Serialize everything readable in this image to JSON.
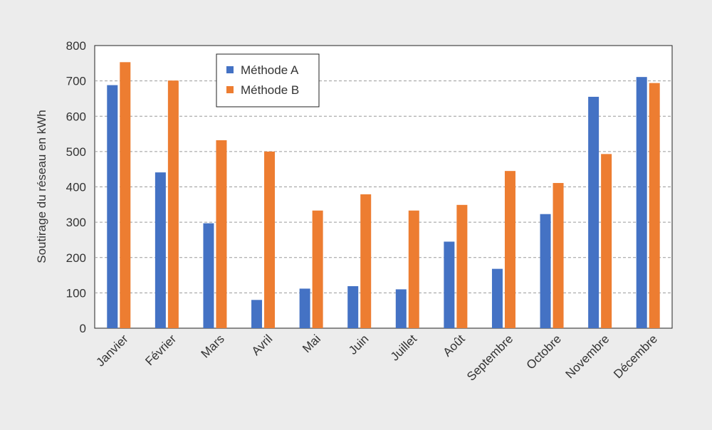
{
  "chart_data": {
    "type": "bar",
    "title": "",
    "xlabel": "",
    "ylabel": "Soutirage du réseau en kWh",
    "ylim": [
      0,
      800
    ],
    "yticks": [
      0,
      100,
      200,
      300,
      400,
      500,
      600,
      700,
      800
    ],
    "grid": true,
    "legend_position": "top-left",
    "categories": [
      "Janvier",
      "Février",
      "Mars",
      "Avril",
      "Mai",
      "Juin",
      "Juillet",
      "Août",
      "Septembre",
      "Octobre",
      "Novembre",
      "Décembre"
    ],
    "series": [
      {
        "name": "Méthode A",
        "color": "#4472c4",
        "values": [
          688,
          441,
          297,
          80,
          112,
          119,
          110,
          245,
          168,
          323,
          655,
          711
        ]
      },
      {
        "name": "Méthode B",
        "color": "#ed7d31",
        "values": [
          753,
          701,
          532,
          500,
          333,
          379,
          333,
          349,
          445,
          411,
          493,
          694
        ]
      }
    ]
  }
}
